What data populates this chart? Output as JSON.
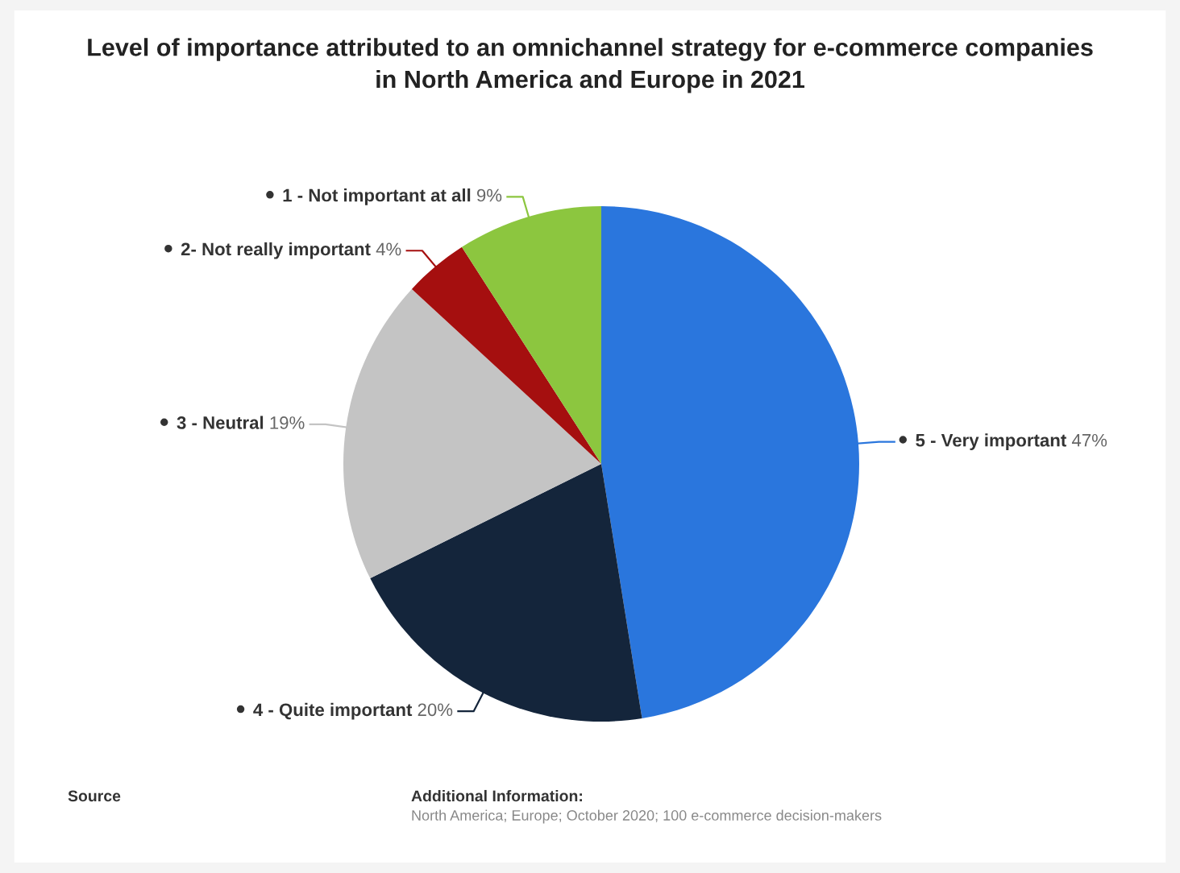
{
  "chart_data": {
    "type": "pie",
    "title": "Level of importance attributed to an omnichannel strategy for e-commerce companies\nin North America and Europe in 2021",
    "categories": [
      "5 - Very important",
      "4 - Quite important",
      "3 - Neutral",
      "2- Not really important",
      "1 - Not important at all"
    ],
    "values": [
      47,
      20,
      19,
      4,
      9
    ],
    "value_labels": [
      "47%",
      "20%",
      "19%",
      "4%",
      "9%"
    ],
    "colors": [
      "#2a76dd",
      "#14253b",
      "#c4c4c4",
      "#a50f0f",
      "#8cc63f"
    ],
    "legend": false,
    "annotations": [
      "Source",
      "Additional Information:",
      "North America; Europe; October 2020; 100 e-commerce decision-makers"
    ]
  }
}
